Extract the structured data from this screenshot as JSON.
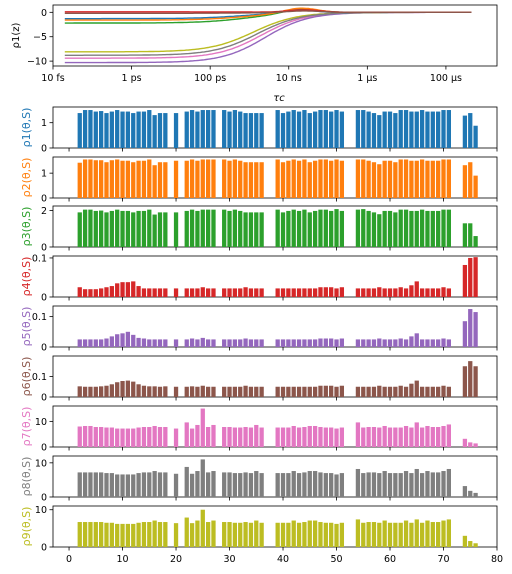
{
  "chart_data": [
    {
      "type": "line",
      "xscale": "log",
      "xlabel": "τc",
      "ylabel": "ρ1(z)",
      "xlim_exp": [
        -14,
        -2.7
      ],
      "ylim": [
        -11,
        1.5
      ],
      "xtick_exp": [
        -14,
        -12,
        -10,
        -8,
        -6,
        -4
      ],
      "xtick_labels": [
        "10 fs",
        "1 ps",
        "100 ps",
        "10 ns",
        "1 μs",
        "100 μs"
      ],
      "ytick_values": [
        0,
        -5,
        -10
      ],
      "ytick_labels": [
        "0",
        "−5",
        "−10"
      ],
      "curves": [
        {
          "color": "#bcbd22",
          "start": -8.1,
          "center": -8.9,
          "width": 0.55,
          "bump": 0
        },
        {
          "color": "#e377c2",
          "start": -9.4,
          "center": -8.7,
          "width": 0.55,
          "bump": 0
        },
        {
          "color": "#9467bd",
          "start": -10.3,
          "center": -8.6,
          "width": 0.55,
          "bump": 0
        },
        {
          "color": "#7f7f7f",
          "start": -8.8,
          "center": -8.8,
          "width": 0.55,
          "bump": 0
        },
        {
          "color": "#2ca02c",
          "start": -2.2,
          "center": -9.0,
          "width": 0.6,
          "bump": 0.9
        },
        {
          "color": "#1f77b4",
          "start": -1.3,
          "center": -9.1,
          "width": 0.6,
          "bump": 0.6
        },
        {
          "color": "#ff7f0e",
          "start": -1.6,
          "center": -9.0,
          "width": 0.6,
          "bump": 1.0
        },
        {
          "color": "#d62728",
          "start": 0.1,
          "center": -8.9,
          "width": 0.5,
          "bump": 0.5
        },
        {
          "color": "#8c564b",
          "start": -0.2,
          "center": -8.9,
          "width": 0.5,
          "bump": 0.3
        }
      ]
    },
    {
      "type": "bar",
      "xlabel": "",
      "xlim": [
        -3,
        80
      ],
      "xticks": [
        0,
        10,
        20,
        30,
        40,
        50,
        60,
        70,
        80
      ],
      "x": [
        2,
        3,
        4,
        5,
        6,
        7,
        8,
        9,
        10,
        11,
        12,
        13,
        14,
        15,
        16,
        17,
        18,
        20,
        22,
        23,
        24,
        25,
        26,
        27,
        29,
        30,
        31,
        32,
        33,
        34,
        35,
        36,
        39,
        40,
        41,
        42,
        43,
        44,
        45,
        46,
        47,
        48,
        49,
        50,
        51,
        54,
        55,
        56,
        57,
        58,
        59,
        60,
        61,
        62,
        63,
        64,
        65,
        66,
        67,
        68,
        69,
        70,
        71,
        74,
        75,
        76
      ],
      "series": [
        {
          "name": "ρ1(θ,S)",
          "color": "#1f77b4",
          "ylim": [
            0,
            1.62
          ],
          "yticks": [
            0,
            1
          ],
          "ytick_labels": [
            "0",
            "1"
          ],
          "values": [
            1.38,
            1.5,
            1.5,
            1.44,
            1.46,
            1.38,
            1.44,
            1.5,
            1.44,
            1.44,
            1.38,
            1.44,
            1.44,
            1.5,
            1.3,
            1.38,
            1.38,
            1.38,
            1.44,
            1.5,
            1.44,
            1.5,
            1.5,
            1.5,
            1.5,
            1.44,
            1.5,
            1.44,
            1.38,
            1.38,
            1.38,
            1.38,
            1.5,
            1.38,
            1.44,
            1.5,
            1.44,
            1.5,
            1.38,
            1.44,
            1.5,
            1.5,
            1.44,
            1.5,
            1.44,
            1.5,
            1.5,
            1.44,
            1.38,
            1.3,
            1.44,
            1.44,
            1.38,
            1.5,
            1.5,
            1.44,
            1.44,
            1.5,
            1.44,
            1.44,
            1.44,
            1.5,
            1.5,
            1.28,
            1.38,
            0.88
          ]
        },
        {
          "name": "ρ2(θ,S)",
          "color": "#ff7f0e",
          "ylim": [
            0,
            1.65
          ],
          "yticks": [
            0,
            1
          ],
          "ytick_labels": [
            "0",
            "1"
          ],
          "values": [
            1.42,
            1.55,
            1.55,
            1.52,
            1.52,
            1.44,
            1.52,
            1.55,
            1.5,
            1.5,
            1.44,
            1.5,
            1.5,
            1.55,
            1.32,
            1.44,
            1.44,
            1.5,
            1.5,
            1.55,
            1.5,
            1.55,
            1.55,
            1.55,
            1.55,
            1.5,
            1.55,
            1.5,
            1.44,
            1.44,
            1.44,
            1.44,
            1.55,
            1.44,
            1.5,
            1.55,
            1.5,
            1.55,
            1.44,
            1.5,
            1.55,
            1.55,
            1.5,
            1.55,
            1.5,
            1.55,
            1.55,
            1.5,
            1.44,
            1.36,
            1.5,
            1.5,
            1.44,
            1.55,
            1.55,
            1.5,
            1.5,
            1.55,
            1.5,
            1.5,
            1.5,
            1.55,
            1.55,
            1.32,
            1.44,
            0.9
          ]
        },
        {
          "name": "ρ3(θ,S)",
          "color": "#2ca02c",
          "ylim": [
            0,
            2.25
          ],
          "yticks": [
            0,
            2
          ],
          "ytick_labels": [
            "0",
            "2"
          ],
          "values": [
            1.9,
            2.05,
            2.05,
            1.98,
            2.0,
            1.9,
            1.98,
            2.05,
            1.98,
            1.98,
            1.9,
            1.98,
            1.98,
            2.05,
            1.78,
            1.9,
            1.9,
            1.9,
            1.98,
            2.05,
            1.98,
            2.05,
            2.05,
            2.05,
            2.05,
            1.98,
            2.05,
            1.98,
            1.9,
            1.9,
            1.9,
            1.9,
            2.05,
            1.9,
            1.98,
            2.05,
            1.98,
            2.05,
            1.9,
            1.98,
            2.05,
            2.05,
            1.98,
            2.08,
            1.98,
            2.05,
            2.08,
            1.98,
            1.9,
            1.8,
            1.98,
            1.98,
            1.9,
            2.05,
            2.05,
            1.98,
            1.98,
            2.05,
            1.98,
            1.98,
            1.98,
            2.05,
            2.05,
            1.3,
            1.3,
            0.6
          ]
        },
        {
          "name": "ρ4(θ,S)",
          "color": "#d62728",
          "ylim": [
            0,
            0.105
          ],
          "yticks": [
            0,
            0.1
          ],
          "ytick_labels": [
            "0",
            "0.1"
          ],
          "values": [
            0.025,
            0.02,
            0.02,
            0.02,
            0.022,
            0.025,
            0.028,
            0.035,
            0.038,
            0.038,
            0.04,
            0.028,
            0.022,
            0.022,
            0.022,
            0.022,
            0.022,
            0.022,
            0.022,
            0.022,
            0.022,
            0.025,
            0.022,
            0.022,
            0.022,
            0.022,
            0.022,
            0.022,
            0.025,
            0.022,
            0.022,
            0.022,
            0.022,
            0.022,
            0.022,
            0.022,
            0.022,
            0.022,
            0.022,
            0.022,
            0.025,
            0.025,
            0.025,
            0.022,
            0.025,
            0.022,
            0.022,
            0.022,
            0.022,
            0.025,
            0.022,
            0.022,
            0.022,
            0.025,
            0.022,
            0.03,
            0.04,
            0.022,
            0.022,
            0.022,
            0.022,
            0.025,
            0.022,
            0.082,
            0.1,
            0.102
          ]
        },
        {
          "name": "ρ5(θ,S)",
          "color": "#9467bd",
          "ylim": [
            0,
            0.135
          ],
          "yticks": [
            0,
            0.1
          ],
          "ytick_labels": [
            "0",
            "0.1"
          ],
          "values": [
            0.025,
            0.025,
            0.025,
            0.025,
            0.025,
            0.028,
            0.035,
            0.042,
            0.045,
            0.05,
            0.04,
            0.03,
            0.028,
            0.025,
            0.025,
            0.025,
            0.025,
            0.025,
            0.025,
            0.028,
            0.025,
            0.03,
            0.025,
            0.025,
            0.025,
            0.025,
            0.025,
            0.025,
            0.028,
            0.025,
            0.025,
            0.025,
            0.025,
            0.025,
            0.025,
            0.025,
            0.025,
            0.025,
            0.025,
            0.025,
            0.028,
            0.028,
            0.028,
            0.025,
            0.028,
            0.025,
            0.025,
            0.025,
            0.025,
            0.028,
            0.025,
            0.025,
            0.025,
            0.028,
            0.025,
            0.035,
            0.045,
            0.025,
            0.025,
            0.025,
            0.025,
            0.028,
            0.025,
            0.085,
            0.125,
            0.115
          ]
        },
        {
          "name": "ρ6(θ,S)",
          "color": "#8c564b",
          "ylim": [
            0,
            0.2
          ],
          "yticks": [
            0,
            0.1
          ],
          "ytick_labels": [
            "0",
            "0.1"
          ],
          "values": [
            0.052,
            0.05,
            0.05,
            0.05,
            0.052,
            0.055,
            0.062,
            0.072,
            0.078,
            0.08,
            0.075,
            0.062,
            0.055,
            0.052,
            0.052,
            0.05,
            0.052,
            0.05,
            0.05,
            0.052,
            0.05,
            0.055,
            0.05,
            0.05,
            0.05,
            0.05,
            0.05,
            0.05,
            0.055,
            0.05,
            0.05,
            0.05,
            0.05,
            0.05,
            0.05,
            0.05,
            0.05,
            0.05,
            0.05,
            0.05,
            0.055,
            0.055,
            0.055,
            0.05,
            0.055,
            0.05,
            0.05,
            0.05,
            0.05,
            0.055,
            0.05,
            0.05,
            0.05,
            0.055,
            0.05,
            0.065,
            0.08,
            0.05,
            0.05,
            0.05,
            0.05,
            0.055,
            0.05,
            0.15,
            0.175,
            0.15
          ]
        },
        {
          "name": "ρ7(θ,S)",
          "color": "#e377c2",
          "ylim": [
            0,
            16
          ],
          "yticks": [
            0,
            10
          ],
          "ytick_labels": [
            "0",
            "10"
          ],
          "values": [
            8,
            8.2,
            8.2,
            7.8,
            7.8,
            7.6,
            7.6,
            7.2,
            7.2,
            7.2,
            7.2,
            7.6,
            7.8,
            7.8,
            8.2,
            7.8,
            7.8,
            7.2,
            9.6,
            7.2,
            8.6,
            15,
            7.8,
            8.6,
            7.8,
            7.8,
            7.6,
            7.6,
            7.8,
            7.6,
            8.6,
            7.6,
            7.6,
            7.6,
            7.6,
            8.2,
            7.6,
            7.8,
            8.2,
            8.2,
            7.8,
            7.6,
            7.6,
            7.2,
            7.6,
            9.6,
            7.6,
            7.8,
            7.8,
            7.6,
            8.2,
            7.6,
            7.6,
            7.6,
            8.2,
            7.6,
            9.6,
            7.6,
            8.2,
            7.8,
            7.8,
            8.2,
            8.8,
            3.2,
            1.8,
            1.4
          ]
        },
        {
          "name": "ρ8(θ,S)",
          "color": "#7f7f7f",
          "ylim": [
            0,
            12
          ],
          "yticks": [
            0,
            10
          ],
          "ytick_labels": [
            "0",
            "10"
          ],
          "values": [
            7.2,
            7.2,
            7.2,
            7.2,
            7.2,
            7,
            7,
            6.6,
            6.6,
            6.6,
            6.6,
            7,
            7.2,
            7.2,
            7.6,
            7.2,
            7.2,
            6.8,
            8.8,
            6.8,
            7.6,
            11,
            7.2,
            7.6,
            7.2,
            7.2,
            7,
            7,
            7.2,
            7,
            7.6,
            7,
            7,
            7,
            7,
            7.6,
            7,
            7.2,
            7.6,
            7.6,
            7.2,
            7,
            7,
            6.6,
            7,
            8.2,
            7,
            7.2,
            7.2,
            7,
            7.6,
            7,
            7,
            7,
            7.6,
            7,
            8.2,
            7,
            7.6,
            7.2,
            7.2,
            7.6,
            8.2,
            3.2,
            1.8,
            1.2
          ]
        },
        {
          "name": "ρ9(θ,S)",
          "color": "#bcbd22",
          "ylim": [
            0,
            11
          ],
          "yticks": [
            0,
            10
          ],
          "ytick_labels": [
            "0",
            "10"
          ],
          "values": [
            6.7,
            6.7,
            6.7,
            6.7,
            6.7,
            6.5,
            6.5,
            6.2,
            6.2,
            6.2,
            6.2,
            6.5,
            6.7,
            6.7,
            7.1,
            6.7,
            6.7,
            6.4,
            7.9,
            6.4,
            7.1,
            10,
            6.7,
            7.1,
            6.7,
            6.7,
            6.5,
            6.5,
            6.7,
            6.5,
            7.1,
            6.5,
            6.5,
            6.5,
            6.5,
            7.1,
            6.5,
            6.7,
            7.1,
            7.1,
            6.7,
            6.5,
            6.5,
            6.2,
            6.5,
            7.4,
            6.5,
            6.7,
            6.7,
            6.5,
            7.1,
            6.5,
            6.5,
            6.5,
            7.1,
            6.5,
            7.4,
            6.5,
            7.1,
            6.7,
            6.7,
            7.1,
            7.4,
            3.0,
            1.6,
            1.0
          ]
        }
      ]
    }
  ]
}
